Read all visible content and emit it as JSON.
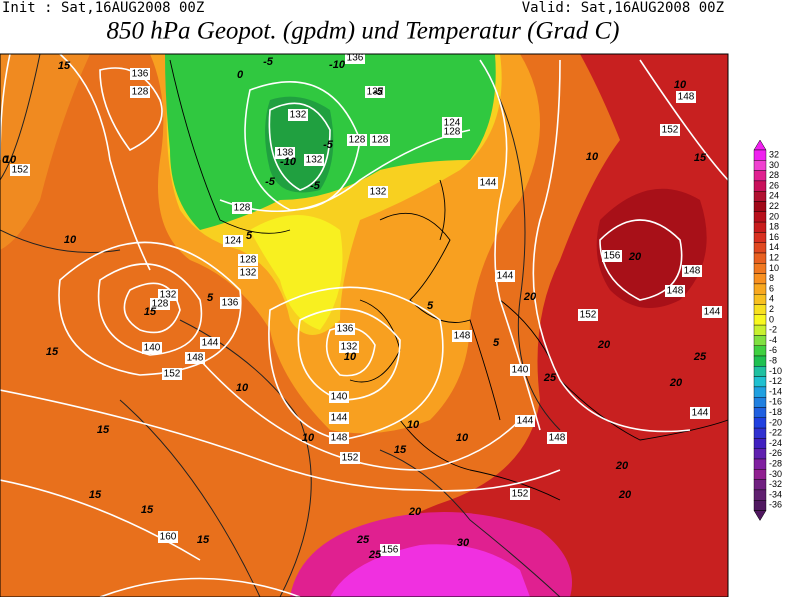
{
  "header": {
    "init": "Init : Sat,16AUG2008 00Z",
    "valid": "Valid: Sat,16AUG2008 00Z",
    "title": "850 hPa Geopot. (gpdm) und Temperatur (Grad C)"
  },
  "colorbar": {
    "ticks": [
      32,
      30,
      28,
      26,
      24,
      22,
      20,
      18,
      16,
      14,
      12,
      10,
      8,
      6,
      4,
      2,
      0,
      -2,
      -4,
      -6,
      -8,
      -10,
      -12,
      -14,
      -16,
      -18,
      -20,
      -22,
      -24,
      -26,
      -28,
      -30,
      -32,
      -34,
      -36
    ],
    "colors": [
      "#f020f0",
      "#f040d0",
      "#e02090",
      "#c8105a",
      "#b01030",
      "#a00818",
      "#b8101c",
      "#c81c1c",
      "#d83020",
      "#e04820",
      "#e86020",
      "#f07820",
      "#f89020",
      "#f8a820",
      "#f8c020",
      "#f8e020",
      "#f8f820",
      "#c8f030",
      "#80e040",
      "#40d040",
      "#20c050",
      "#20c0a0",
      "#20c0d0",
      "#20a0e0",
      "#2080e0",
      "#2060e0",
      "#2040e0",
      "#3030d0",
      "#4020c0",
      "#6020b0",
      "#8020a0",
      "#902090",
      "#702080",
      "#602070",
      "#501860"
    ]
  },
  "map": {
    "geopotential_labels": [
      152,
      136,
      128,
      132,
      138,
      132,
      128,
      128,
      132,
      136,
      132,
      124,
      128,
      128,
      124,
      128,
      132,
      132,
      128,
      136,
      140,
      144,
      148,
      152,
      136,
      132,
      140,
      144,
      148,
      152,
      144,
      144,
      148,
      140,
      144,
      148,
      152,
      156,
      152,
      148,
      148,
      144,
      144,
      148,
      152,
      160,
      156
    ],
    "temperature_labels": [
      15,
      10,
      10,
      15,
      15,
      15,
      15,
      15,
      15,
      10,
      10,
      15,
      10,
      10,
      5,
      5,
      5,
      5,
      10,
      10,
      10,
      15,
      20,
      20,
      20,
      20,
      25,
      25,
      20,
      20,
      20,
      25,
      25,
      30,
      -5,
      -10,
      -5,
      -10,
      -5,
      -5,
      -5,
      0,
      0
    ]
  }
}
